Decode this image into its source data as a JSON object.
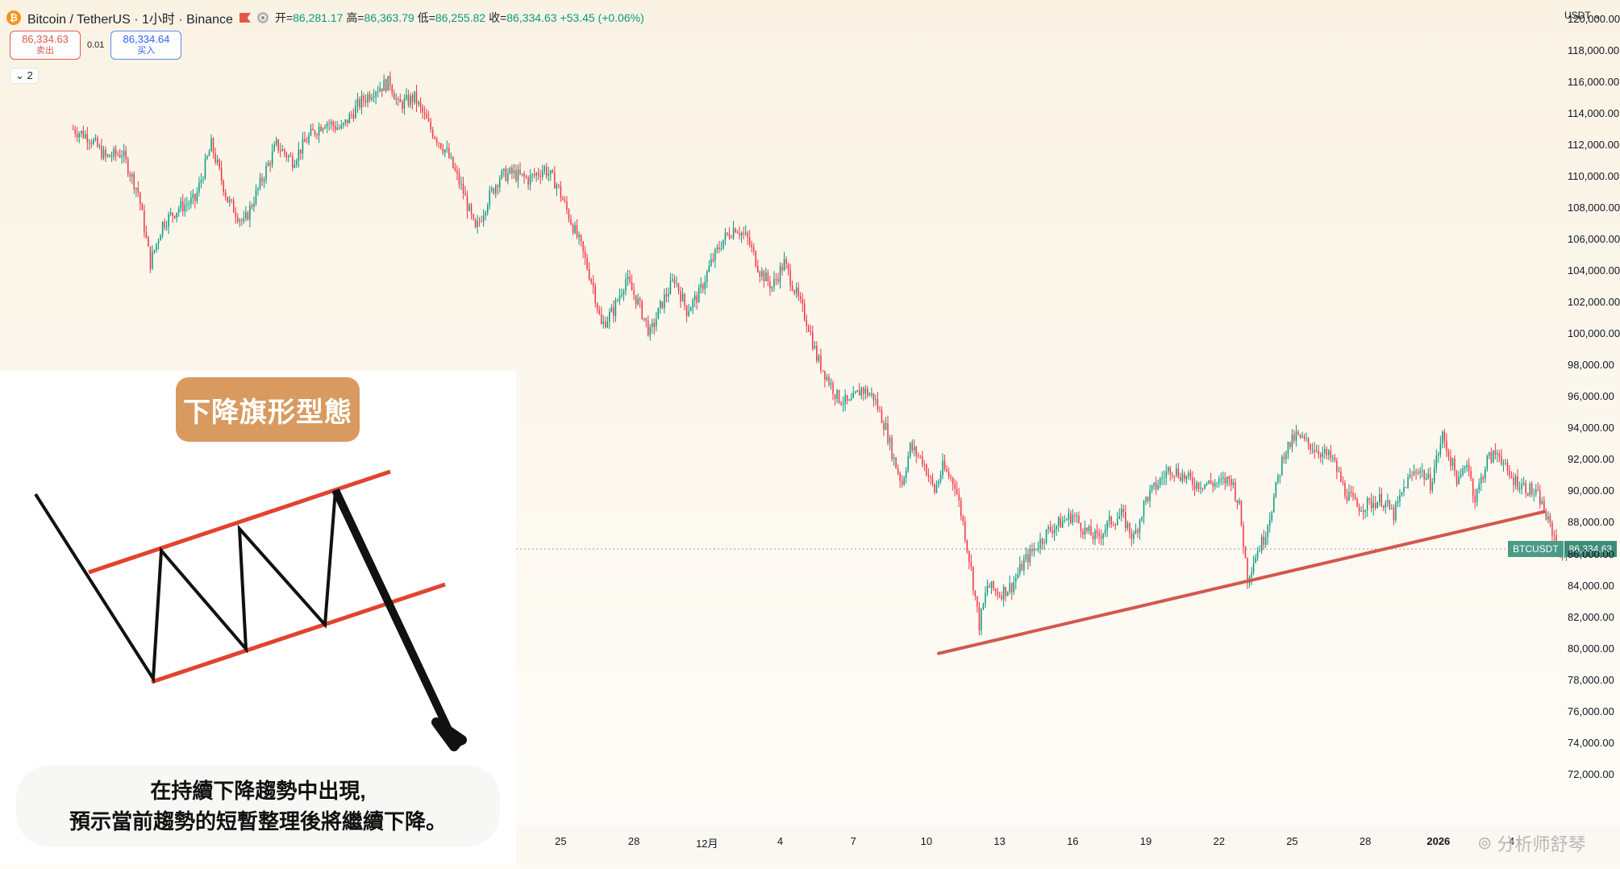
{
  "header": {
    "symbol_title": "Bitcoin / TetherUS · 1小时 · Binance",
    "coin_letter": "₿",
    "ohlc": {
      "open_label": "开=",
      "open": "86,281.17",
      "high_label": "高=",
      "high": "86,363.79",
      "low_label": "低=",
      "low": "86,255.82",
      "close_label": "收=",
      "close": "86,334.63",
      "change": "+53.45 (+0.06%)"
    }
  },
  "trade": {
    "sell_price": "86,334.63",
    "sell_label": "卖出",
    "spread": "0.01",
    "buy_price": "86,334.64",
    "buy_label": "买入"
  },
  "collapse_count": "2",
  "currency": "USDT",
  "price_tag": {
    "symbol": "BTCUSDT",
    "price": "86,334.63"
  },
  "infographic": {
    "title": "下降旗形型態",
    "caption_line1": "在持續下降趨勢中出現,",
    "caption_line2": "預示當前趨勢的短暫整理後將繼續下降。"
  },
  "watermark": "分析师舒琴",
  "colors": {
    "up": "#089981",
    "down": "#f23645",
    "trendline": "#d2584e",
    "accent": "#d89a5f"
  },
  "chart_data": {
    "type": "candlestick",
    "title": "Bitcoin / TetherUS · 1小时 · Binance",
    "ylim": [
      70000,
      121000
    ],
    "y_ticks": [
      "120,000.00",
      "118,000.00",
      "116,000.00",
      "114,000.00",
      "112,000.00",
      "110,000.00",
      "108,000.00",
      "106,000.00",
      "104,000.00",
      "102,000.00",
      "100,000.00",
      "98,000.00",
      "96,000.00",
      "94,000.00",
      "92,000.00",
      "90,000.00",
      "88,000.00",
      "86,000.00",
      "84,000.00",
      "82,000.00",
      "80,000.00",
      "78,000.00",
      "76,000.00",
      "74,000.00",
      "72,000.00"
    ],
    "y_tick_values": [
      120000,
      118000,
      116000,
      114000,
      112000,
      110000,
      108000,
      106000,
      104000,
      102000,
      100000,
      98000,
      96000,
      94000,
      92000,
      90000,
      88000,
      86000,
      84000,
      82000,
      80000,
      78000,
      76000,
      74000,
      72000
    ],
    "x_ticks": [
      "13",
      "16",
      "19",
      "22",
      "25",
      "28",
      "12月",
      "4",
      "7",
      "10",
      "13",
      "16",
      "19",
      "22",
      "25",
      "28",
      "2026",
      "4"
    ],
    "x_tick_index": [
      48,
      66,
      84,
      102,
      120,
      138,
      156,
      174,
      192,
      210,
      228,
      246,
      264,
      282,
      300,
      318,
      336,
      354
    ],
    "x_range": [
      -18,
      366
    ],
    "price_path": [
      [
        0,
        113000
      ],
      [
        4,
        112500
      ],
      [
        8,
        111200
      ],
      [
        12,
        111500
      ],
      [
        16,
        109000
      ],
      [
        19,
        104500
      ],
      [
        22,
        107000
      ],
      [
        26,
        108000
      ],
      [
        30,
        108500
      ],
      [
        34,
        112000
      ],
      [
        38,
        108500
      ],
      [
        42,
        107000
      ],
      [
        46,
        109500
      ],
      [
        50,
        112000
      ],
      [
        54,
        111000
      ],
      [
        58,
        112500
      ],
      [
        62,
        113500
      ],
      [
        66,
        113000
      ],
      [
        70,
        114500
      ],
      [
        74,
        115500
      ],
      [
        78,
        116000
      ],
      [
        80,
        114500
      ],
      [
        84,
        115000
      ],
      [
        88,
        113000
      ],
      [
        92,
        111500
      ],
      [
        96,
        109000
      ],
      [
        99,
        106500
      ],
      [
        102,
        108500
      ],
      [
        105,
        110000
      ],
      [
        108,
        110200
      ],
      [
        112,
        109800
      ],
      [
        116,
        110500
      ],
      [
        119,
        109500
      ],
      [
        122,
        107500
      ],
      [
        125,
        105500
      ],
      [
        128,
        103000
      ],
      [
        130,
        100500
      ],
      [
        133,
        101500
      ],
      [
        136,
        103500
      ],
      [
        139,
        102000
      ],
      [
        142,
        100000
      ],
      [
        145,
        102000
      ],
      [
        148,
        103500
      ],
      [
        151,
        101500
      ],
      [
        154,
        102500
      ],
      [
        157,
        104500
      ],
      [
        160,
        106000
      ],
      [
        163,
        106800
      ],
      [
        166,
        106000
      ],
      [
        169,
        104000
      ],
      [
        172,
        103000
      ],
      [
        175,
        104500
      ],
      [
        178,
        102500
      ],
      [
        181,
        100500
      ],
      [
        183,
        98500
      ],
      [
        185,
        97500
      ],
      [
        188,
        96000
      ],
      [
        191,
        95500
      ],
      [
        194,
        96500
      ],
      [
        197,
        96000
      ],
      [
        200,
        94000
      ],
      [
        202,
        92000
      ],
      [
        204,
        90500
      ],
      [
        206,
        92800
      ],
      [
        209,
        92000
      ],
      [
        212,
        90000
      ],
      [
        214,
        91500
      ],
      [
        217,
        90500
      ],
      [
        219,
        88000
      ],
      [
        221,
        85000
      ],
      [
        223,
        81500
      ],
      [
        225,
        84000
      ],
      [
        228,
        83500
      ],
      [
        231,
        84000
      ],
      [
        234,
        85500
      ],
      [
        237,
        86500
      ],
      [
        240,
        87500
      ],
      [
        243,
        88000
      ],
      [
        246,
        88500
      ],
      [
        249,
        87500
      ],
      [
        252,
        87000
      ],
      [
        255,
        88000
      ],
      [
        258,
        88500
      ],
      [
        261,
        87000
      ],
      [
        264,
        89500
      ],
      [
        267,
        90500
      ],
      [
        270,
        91500
      ],
      [
        273,
        91000
      ],
      [
        276,
        90500
      ],
      [
        279,
        90500
      ],
      [
        282,
        90500
      ],
      [
        285,
        90800
      ],
      [
        287,
        89000
      ],
      [
        289,
        84500
      ],
      [
        291,
        86000
      ],
      [
        293,
        87000
      ],
      [
        295,
        89000
      ],
      [
        298,
        92500
      ],
      [
        301,
        93500
      ],
      [
        304,
        93000
      ],
      [
        307,
        92500
      ],
      [
        310,
        92000
      ],
      [
        313,
        90000
      ],
      [
        316,
        89000
      ],
      [
        319,
        89200
      ],
      [
        322,
        89500
      ],
      [
        325,
        88500
      ],
      [
        328,
        90500
      ],
      [
        331,
        91500
      ],
      [
        334,
        90500
      ],
      [
        337,
        93500
      ],
      [
        339,
        92000
      ],
      [
        341,
        90500
      ],
      [
        343,
        92000
      ],
      [
        345,
        89500
      ],
      [
        348,
        92000
      ],
      [
        351,
        92500
      ],
      [
        353,
        91000
      ],
      [
        356,
        90500
      ],
      [
        359,
        90000
      ],
      [
        361,
        89500
      ],
      [
        363,
        88000
      ],
      [
        364,
        87500
      ],
      [
        366,
        86000
      ],
      [
        368,
        86300
      ]
    ],
    "last_price": 86334.63,
    "trendline": {
      "start": [
        213,
        79700
      ],
      "end": [
        362,
        88700
      ]
    }
  }
}
